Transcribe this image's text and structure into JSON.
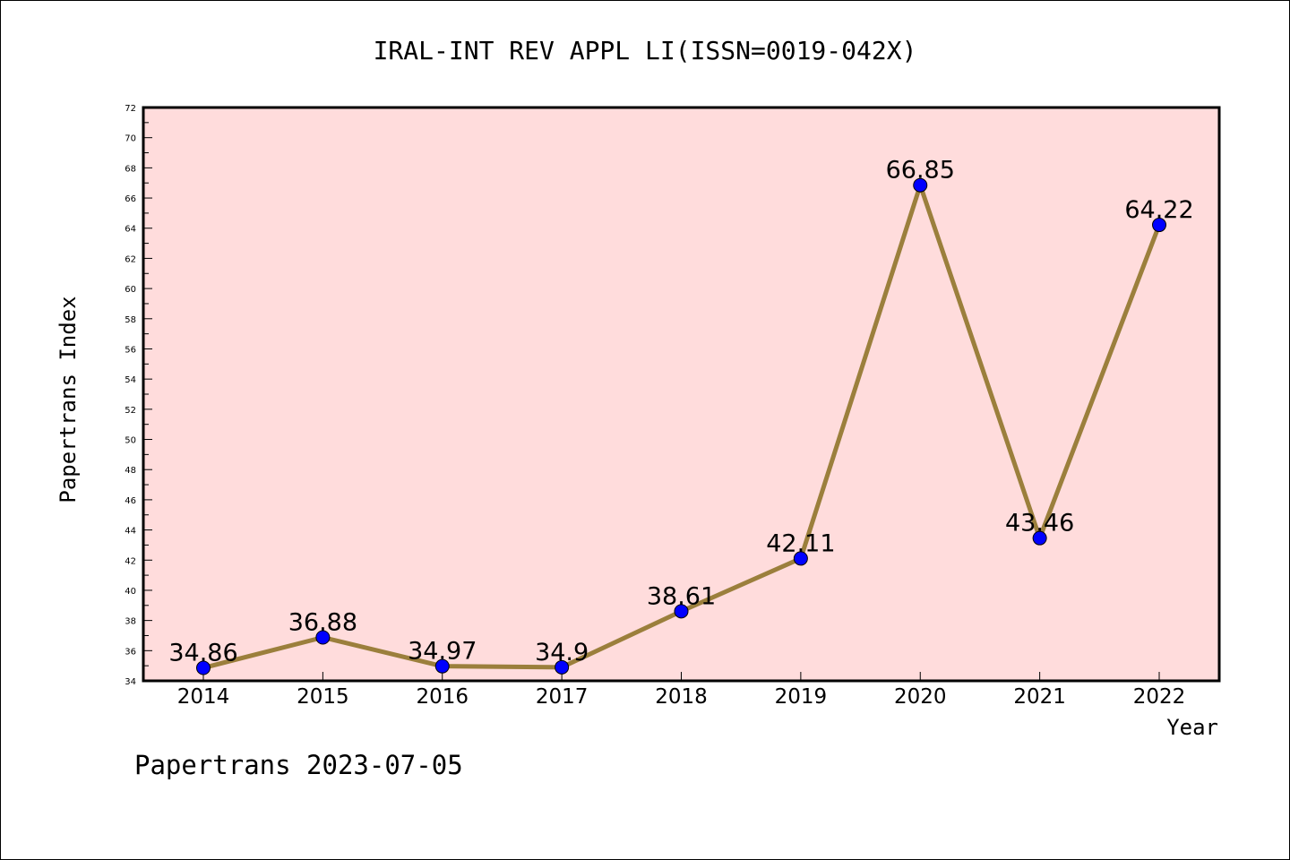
{
  "chart_data": {
    "type": "line",
    "title": "IRAL-INT REV APPL LI(ISSN=0019-042X)",
    "xlabel": "Year",
    "ylabel": "Papertrans Index",
    "x": [
      "2014",
      "2015",
      "2016",
      "2017",
      "2018",
      "2019",
      "2020",
      "2021",
      "2022"
    ],
    "values": [
      34.86,
      36.88,
      34.97,
      34.9,
      38.61,
      42.11,
      66.85,
      43.46,
      64.22
    ],
    "data_labels": [
      "34.86",
      "36.88",
      "34.97",
      "34.9",
      "38.61",
      "42.11",
      "66.85",
      "43.46",
      "64.22"
    ],
    "ylim": [
      34,
      72
    ],
    "y_ticks": [
      "34",
      "36",
      "38",
      "40",
      "42",
      "44",
      "46",
      "48",
      "50",
      "52",
      "54",
      "56",
      "58",
      "60",
      "62",
      "64",
      "66",
      "68",
      "70",
      "72"
    ],
    "grid": false,
    "colors": {
      "plot_background": "#ffdcdc",
      "line": "#9b7f3c",
      "marker": "#0000ff"
    }
  },
  "footer": "Papertrans 2023-07-05"
}
